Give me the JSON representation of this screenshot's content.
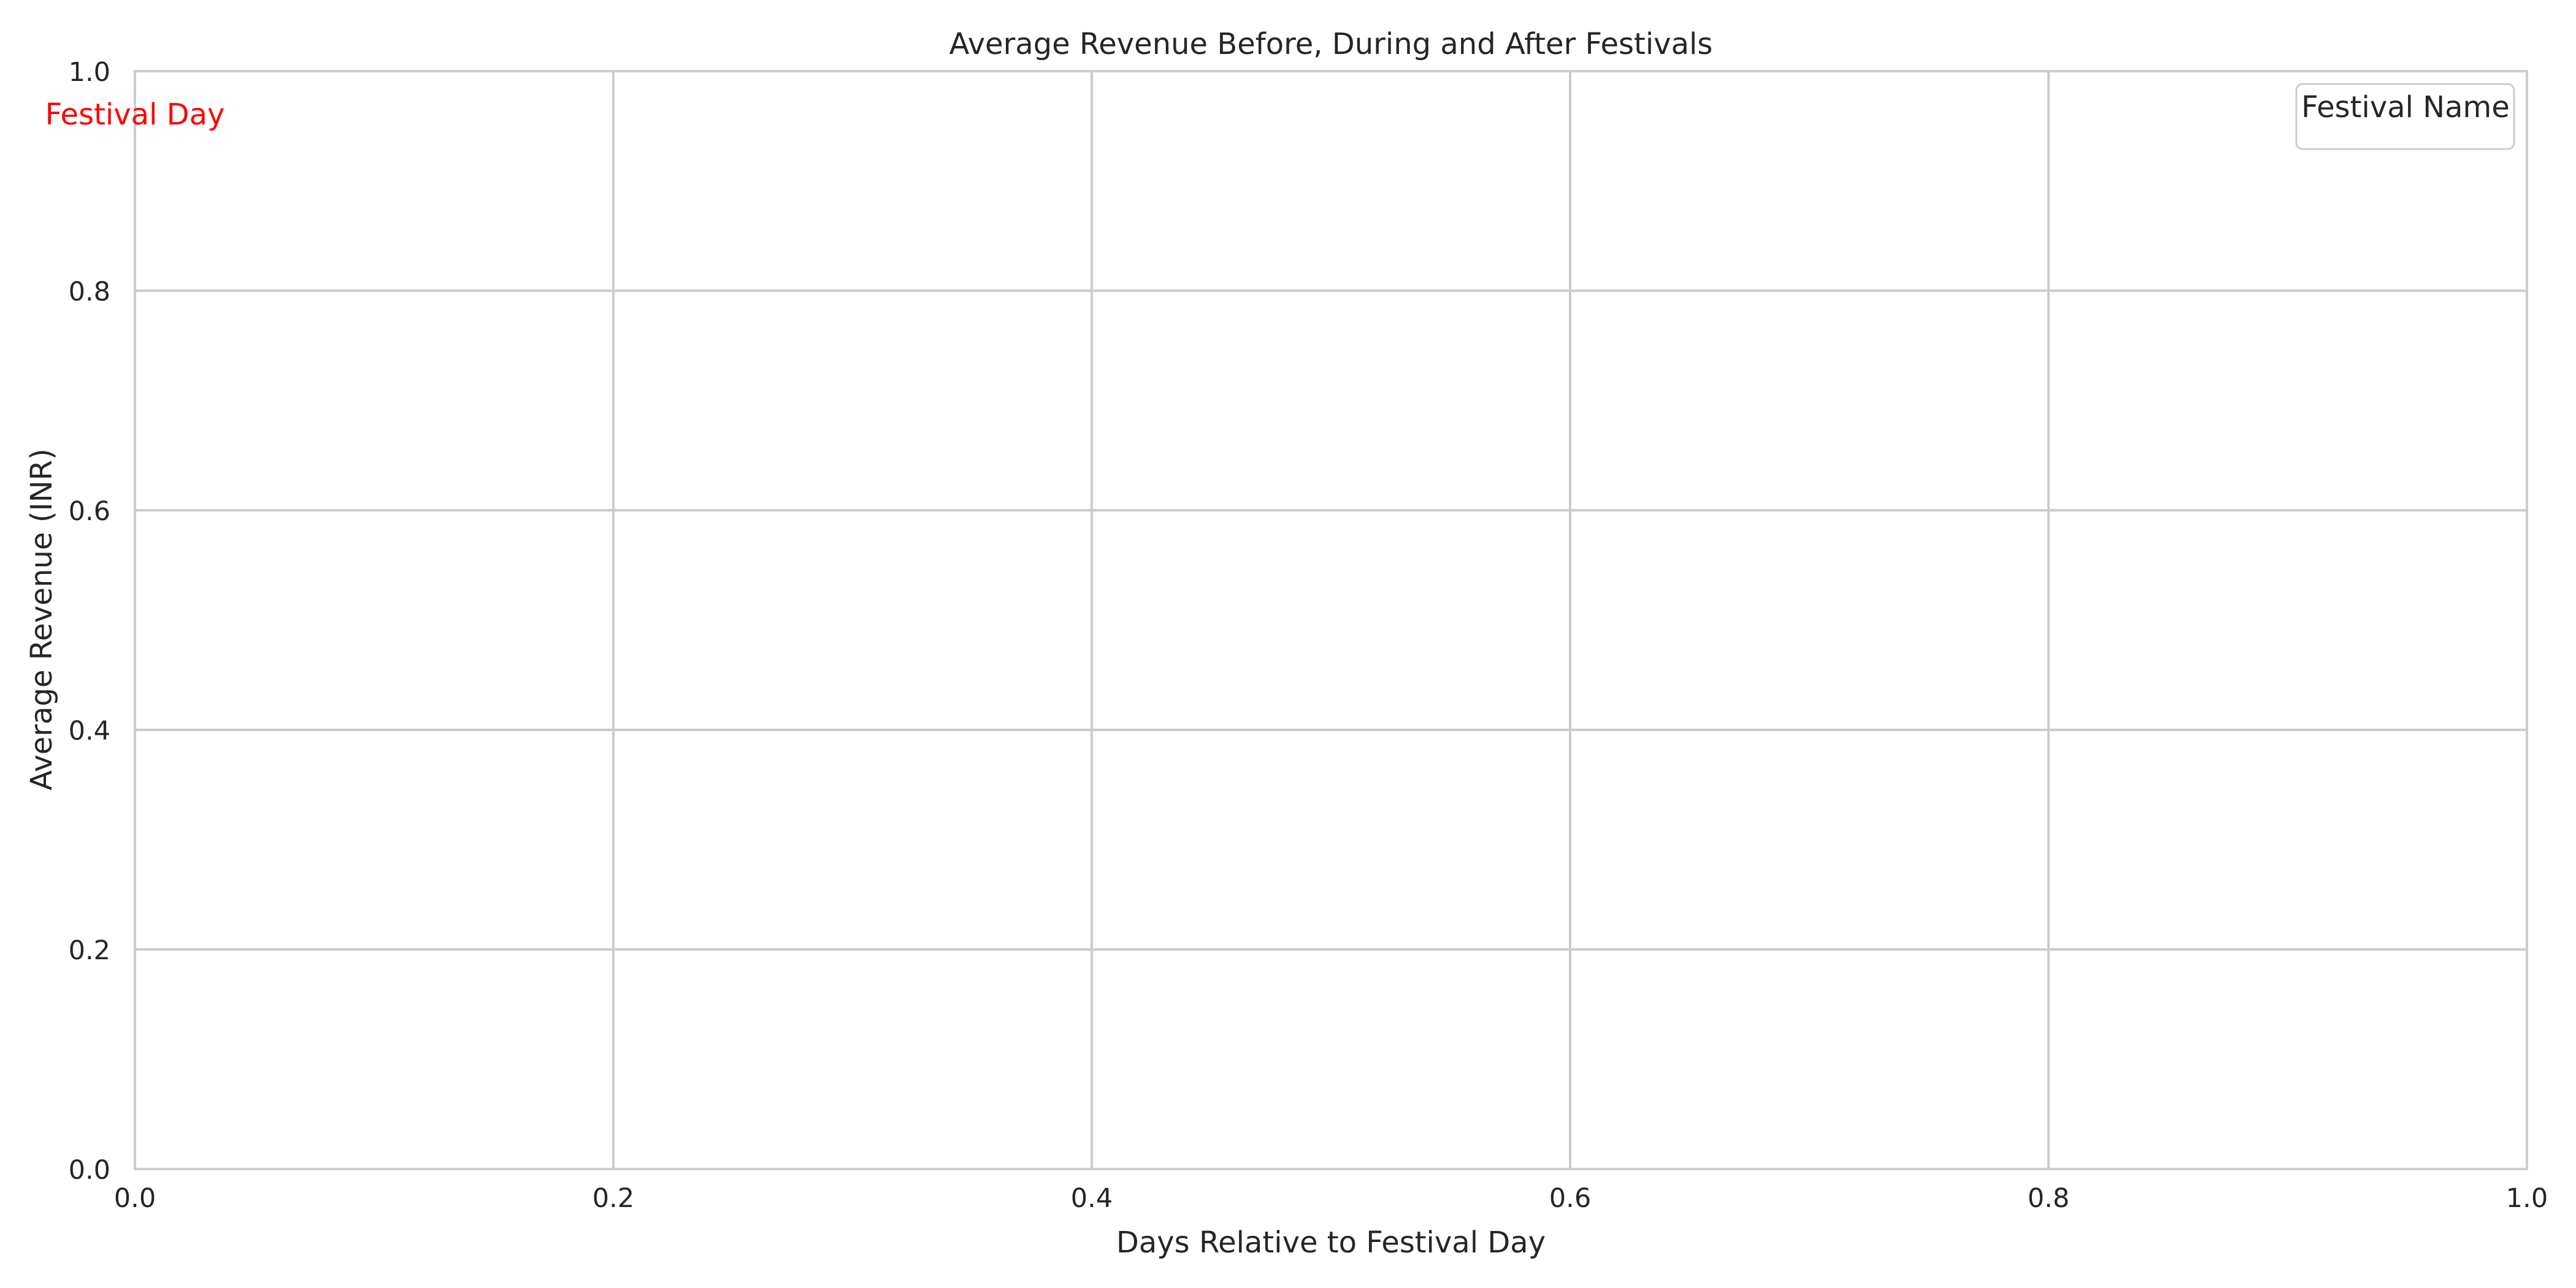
{
  "chart_data": {
    "type": "line",
    "title": "Average Revenue Before, During and After Festivals",
    "xlabel": "Days Relative to Festival Day",
    "ylabel": "Average Revenue (INR)",
    "xlim": [
      0.0,
      1.0
    ],
    "ylim": [
      0.0,
      1.0
    ],
    "x_ticks": [
      "0.0",
      "0.2",
      "0.4",
      "0.6",
      "0.8",
      "1.0"
    ],
    "y_ticks": [
      "0.0",
      "0.2",
      "0.4",
      "0.6",
      "0.8",
      "1.0"
    ],
    "series": [],
    "grid": true,
    "legend": {
      "title": "Festival Name",
      "position": "top-right",
      "entries": []
    },
    "annotation": {
      "text": "Festival Day",
      "color": "#ff0000"
    },
    "colors": {
      "grid": "#cccccc",
      "spine": "#cccccc",
      "text": "#262626"
    }
  }
}
